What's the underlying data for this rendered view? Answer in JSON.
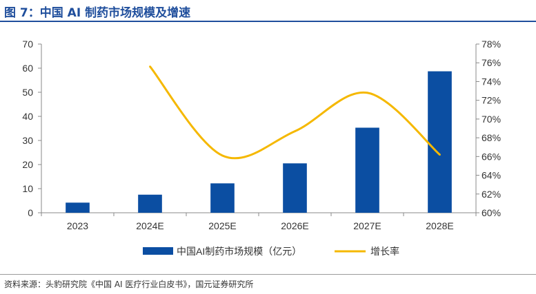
{
  "figure": {
    "title": "图 7：中国 AI 制药市场规模及增速",
    "source": "资料来源：头豹研究院《中国 AI 医疗行业白皮书》，国元证券研究所"
  },
  "colors": {
    "bar": "#0b4ea2",
    "line": "#f5b800",
    "title": "#1f4e9c",
    "axis": "#333333"
  },
  "chart_data": {
    "type": "bar",
    "categories": [
      "2023",
      "2024E",
      "2025E",
      "2026E",
      "2027E",
      "2028E"
    ],
    "series": [
      {
        "name": "中国AI制药市场规模（亿元）",
        "type": "bar",
        "axis": "left",
        "values": [
          4.2,
          7.5,
          12.2,
          20.5,
          35.3,
          58.7
        ]
      },
      {
        "name": "增长率",
        "type": "line",
        "axis": "right",
        "smooth": true,
        "values": [
          null,
          75.6,
          66.1,
          68.7,
          72.8,
          66.2
        ]
      }
    ],
    "left_axis": {
      "range": [
        0,
        70
      ],
      "ticks": [
        "0",
        "10",
        "20",
        "30",
        "40",
        "50",
        "60",
        "70"
      ]
    },
    "right_axis": {
      "range": [
        60,
        78
      ],
      "ticks": [
        "60%",
        "62%",
        "64%",
        "66%",
        "68%",
        "70%",
        "72%",
        "74%",
        "76%",
        "78%"
      ]
    },
    "grid": false,
    "legend_position": "bottom"
  }
}
